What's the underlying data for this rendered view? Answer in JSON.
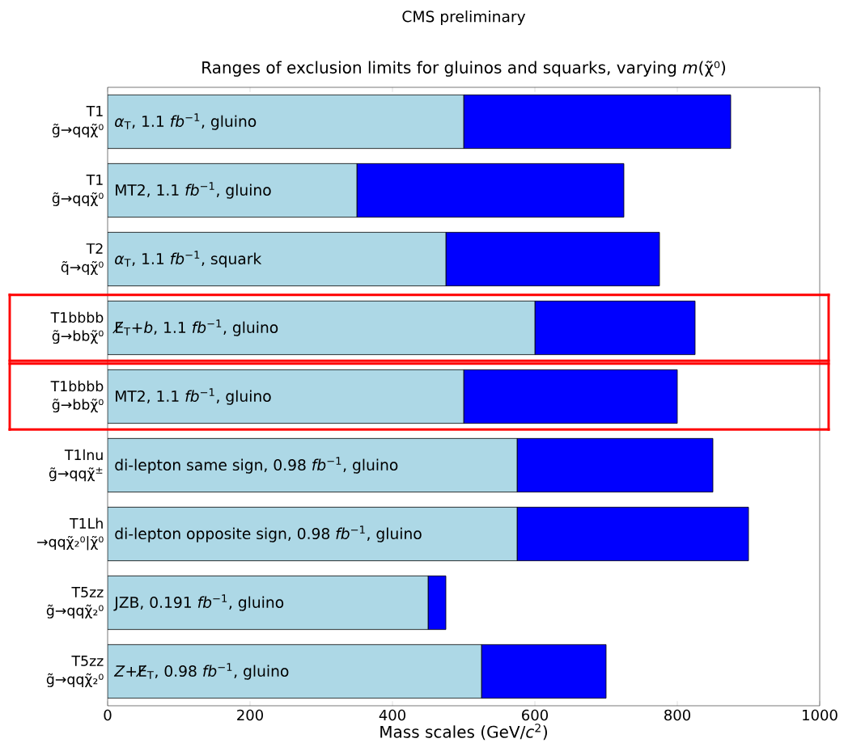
{
  "chart_data": {
    "type": "bar",
    "orientation": "horizontal",
    "stacked": true,
    "title": "CMS preliminary",
    "subtitle": "Ranges of exclusion limits for gluinos and squarks, varying *m*(χ̃⁰)",
    "xlabel": "Mass scales (GeV/*c*$^{2}$)",
    "categories": [
      "T1\ng̃→qqχ̃⁰",
      "T1\ng̃→qqχ̃⁰",
      "T2\nq̃→qχ̃⁰",
      "T1bbbb\ng̃→bbχ̃⁰",
      "T1bbbb\ng̃→bbχ̃⁰",
      "T1lnu\ng̃→qqχ̃$^{±}$",
      "T1Lh\n→qqχ̃₂⁰|χ̃⁰",
      "T5zz\ng̃→qqχ̃₂⁰",
      "T5zz\ng̃→qqχ̃₂⁰"
    ],
    "series": [
      {
        "color": "#add8e6",
        "values": [
          500,
          350,
          475,
          600,
          500,
          575,
          575,
          450,
          525
        ]
      },
      {
        "color": "#0000ff",
        "values": [
          375,
          375,
          300,
          225,
          300,
          275,
          325,
          25,
          175
        ]
      }
    ],
    "annotations": [
      "*α*$_{T}$, 1.1 *fb*$^{−1}$, gluino",
      "MT2, 1.1 *fb*$^{−1}$, gluino",
      "*α*$_{T}$, 1.1 *fb*$^{−1}$, squark",
      "E̸$_{T}$+*b*, 1.1 *fb*$^{−1}$, gluino",
      "MT2, 1.1 *fb*$^{−1}$, gluino",
      "di-lepton same sign, 0.98 *fb*$^{−1}$, gluino",
      "di-lepton opposite sign, 0.98 *fb*$^{−1}$, gluino",
      "JZB, 0.191 *fb*$^{−1}$, gluino",
      "*Z*+E̸$_{T}$, 0.98 *fb*$^{−1}$, gluino"
    ],
    "xlim": [
      0,
      1000
    ],
    "xticks": [
      0,
      200,
      400,
      600,
      800,
      1000
    ]
  }
}
